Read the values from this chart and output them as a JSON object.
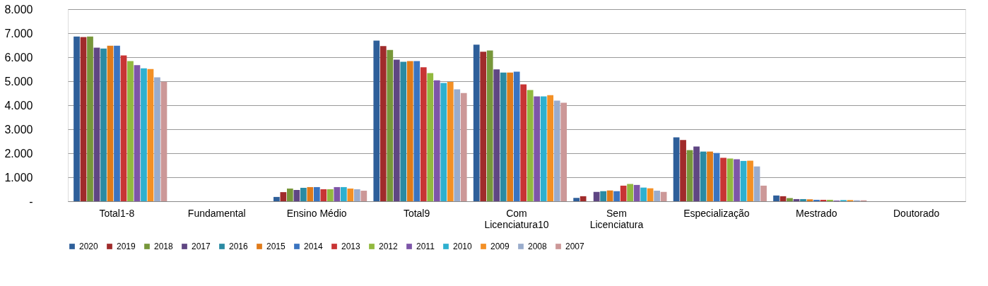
{
  "chart_data": {
    "type": "bar",
    "categories": [
      "Total1-8",
      "Fundamental",
      "Ensino Médio",
      "Total9",
      "Com Licenciatura10",
      "Sem Licenciatura",
      "Especialização",
      "Mestrado",
      "Doutorado"
    ],
    "series": [
      {
        "name": "2020",
        "color": "#2e5f9a",
        "values": [
          6860,
          null,
          180,
          6690,
          6520,
          140,
          2660,
          240,
          null
        ]
      },
      {
        "name": "2019",
        "color": "#a02b2b",
        "values": [
          6840,
          null,
          380,
          6460,
          6230,
          210,
          2550,
          210,
          null
        ]
      },
      {
        "name": "2018",
        "color": "#77973a",
        "values": [
          6860,
          null,
          530,
          6300,
          6280,
          null,
          2130,
          130,
          null
        ]
      },
      {
        "name": "2017",
        "color": "#5f4683",
        "values": [
          6400,
          null,
          470,
          5900,
          5490,
          390,
          2280,
          90,
          null
        ]
      },
      {
        "name": "2016",
        "color": "#2a8aa3",
        "values": [
          6360,
          null,
          560,
          5810,
          5360,
          420,
          2070,
          90,
          null
        ]
      },
      {
        "name": "2015",
        "color": "#e07b1a",
        "values": [
          6480,
          null,
          590,
          5840,
          5360,
          450,
          2070,
          80,
          null
        ]
      },
      {
        "name": "2014",
        "color": "#3a74c0",
        "values": [
          6480,
          null,
          590,
          5840,
          5400,
          420,
          2010,
          60,
          null
        ]
      },
      {
        "name": "2013",
        "color": "#c83434",
        "values": [
          6070,
          null,
          500,
          5580,
          4870,
          650,
          1810,
          60,
          null
        ]
      },
      {
        "name": "2012",
        "color": "#92b93f",
        "values": [
          5840,
          null,
          500,
          5340,
          4630,
          720,
          1780,
          60,
          null
        ]
      },
      {
        "name": "2011",
        "color": "#7d55a8",
        "values": [
          5670,
          null,
          590,
          5040,
          4370,
          680,
          1750,
          30,
          null
        ]
      },
      {
        "name": "2010",
        "color": "#2eb0cf",
        "values": [
          5540,
          null,
          590,
          4930,
          4370,
          570,
          1680,
          50,
          null
        ]
      },
      {
        "name": "2009",
        "color": "#f39025",
        "values": [
          5510,
          null,
          530,
          4970,
          4420,
          540,
          1690,
          50,
          null
        ]
      },
      {
        "name": "2008",
        "color": "#9aaccc",
        "values": [
          5160,
          null,
          500,
          4660,
          4190,
          440,
          1450,
          40,
          null
        ]
      },
      {
        "name": "2007",
        "color": "#cc9898",
        "values": [
          4980,
          null,
          440,
          4510,
          4100,
          390,
          650,
          40,
          null
        ]
      }
    ],
    "ylim": [
      0,
      8000
    ],
    "yticks": [
      {
        "value": 0,
        "label": "-"
      },
      {
        "value": 1000,
        "label": "1.000"
      },
      {
        "value": 2000,
        "label": "2.000"
      },
      {
        "value": 3000,
        "label": "3.000"
      },
      {
        "value": 4000,
        "label": "4.000"
      },
      {
        "value": 5000,
        "label": "5.000"
      },
      {
        "value": 6000,
        "label": "6.000"
      },
      {
        "value": 7000,
        "label": "7.000"
      },
      {
        "value": 8000,
        "label": "8.000"
      }
    ],
    "grid": "y",
    "legend": "bottom"
  }
}
